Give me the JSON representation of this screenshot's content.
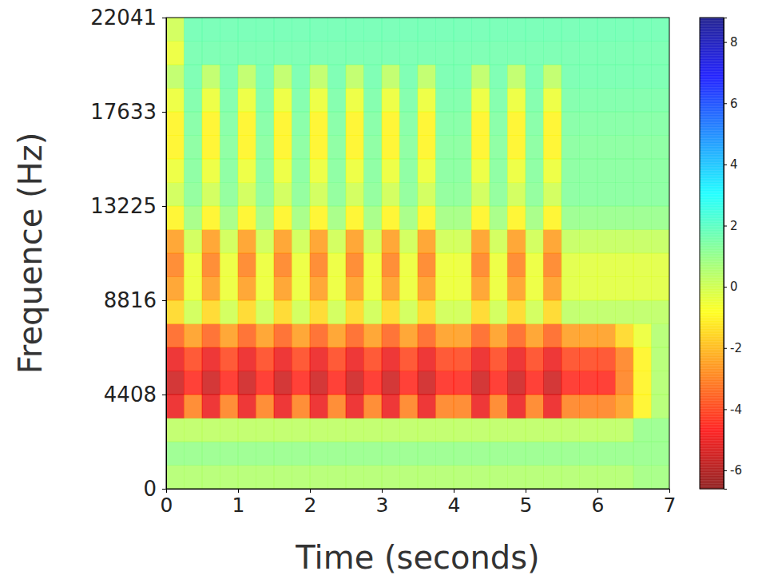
{
  "chart_data": {
    "type": "heatmap",
    "x_label": "Time (seconds)",
    "y_label": "Frequence (Hz)",
    "xlim": [
      0,
      7
    ],
    "ylim": [
      0,
      22041
    ],
    "xticks": [
      0,
      1,
      2,
      3,
      4,
      5,
      6,
      7
    ],
    "yticks": [
      0,
      4408,
      8816,
      13225,
      17633,
      22041
    ],
    "color": "jet_r",
    "colorbar": {
      "lim": [
        -6.6,
        8.8
      ],
      "ticks": [
        -6,
        -4,
        -2,
        0,
        2,
        4,
        6,
        8
      ]
    },
    "x": [
      0,
      0.25,
      0.5,
      0.75,
      1,
      1.25,
      1.5,
      1.75,
      2,
      2.25,
      2.5,
      2.75,
      3,
      3.25,
      3.5,
      3.75,
      4,
      4.25,
      4.5,
      4.75,
      5,
      5.25,
      5.5,
      5.75,
      6,
      6.25,
      6.5,
      6.75,
      7
    ],
    "y": [
      0,
      1102,
      2204,
      3306,
      4408,
      5510,
      6612,
      7715,
      8816,
      9918,
      11020,
      12123,
      13225,
      14327,
      15429,
      16531,
      17633,
      18735,
      19837,
      20939,
      22041
    ],
    "z": [
      [
        0.5,
        0.5,
        0.5,
        0.5,
        0.5,
        0.5,
        0.5,
        0.5,
        0.5,
        0.5,
        0.5,
        0.5,
        0.5,
        0.5,
        0.5,
        0.5,
        0.5,
        0.5,
        0.5,
        0.5,
        0.5,
        0.5,
        0.5,
        0.5,
        0.5,
        0.5,
        0.8,
        0.8
      ],
      [
        1,
        1,
        1,
        1,
        1,
        1,
        1,
        1,
        1,
        1,
        1,
        1,
        1,
        1,
        1,
        1,
        1,
        1,
        1,
        1,
        1,
        1,
        1,
        1,
        1,
        1,
        1,
        1
      ],
      [
        0.3,
        0.3,
        0.3,
        0.3,
        0.3,
        0.3,
        0.3,
        0.3,
        0.3,
        0.3,
        0.3,
        0.3,
        0.3,
        0.3,
        0.3,
        0.3,
        0.3,
        0.3,
        0.3,
        0.3,
        0.3,
        0.3,
        0.3,
        0.3,
        0.3,
        0.3,
        1,
        1
      ],
      [
        -5,
        -3,
        -5,
        -3,
        -5,
        -3,
        -5,
        -3,
        -5,
        -3,
        -5,
        -3,
        -5,
        -3,
        -5,
        -3,
        -3,
        -5,
        -3,
        -5,
        -3,
        -5,
        -3,
        -3,
        -3,
        -2.5,
        -1,
        0.5
      ],
      [
        -5.5,
        -4.5,
        -5.5,
        -4.5,
        -5.5,
        -4.5,
        -5.5,
        -4.5,
        -5.5,
        -4.5,
        -5.5,
        -4.5,
        -5.5,
        -4.5,
        -5.5,
        -4.5,
        -4.5,
        -5.5,
        -4.5,
        -5.5,
        -4.5,
        -5.5,
        -4.5,
        -4.5,
        -4.5,
        -3,
        -1,
        0.5
      ],
      [
        -5,
        -4,
        -5,
        -4,
        -5,
        -4,
        -5,
        -4,
        -5,
        -4,
        -5,
        -4,
        -5,
        -4,
        -5,
        -4,
        -4,
        -5,
        -4,
        -5,
        -4,
        -5,
        -4,
        -4,
        -4,
        -3,
        -1,
        0.5
      ],
      [
        -3.5,
        -2.5,
        -3.5,
        -2.5,
        -3.5,
        -2.5,
        -3.5,
        -2.5,
        -3.5,
        -2.5,
        -3.5,
        -2.5,
        -3.5,
        -2.5,
        -3.5,
        -2.5,
        -2.5,
        -3.5,
        -2.5,
        -3.5,
        -2.5,
        -3.5,
        -2.5,
        -2.5,
        -2.5,
        -1.5,
        -0.5,
        0.5
      ],
      [
        -1.5,
        0,
        -1.5,
        0,
        -1.5,
        0,
        -1.5,
        0,
        -1.5,
        0,
        -1.5,
        0,
        -1.5,
        0,
        -1.5,
        0,
        0,
        -1.5,
        0,
        -1.5,
        0,
        -1.5,
        0.3,
        0.3,
        0.3,
        0.3,
        0.3,
        0.3
      ],
      [
        -2.5,
        -0.5,
        -2.5,
        -0.5,
        -2.5,
        -0.5,
        -2.5,
        -0.5,
        -2.5,
        -0.5,
        -2.5,
        -0.5,
        -2.5,
        -0.5,
        -2.5,
        -0.5,
        -0.5,
        -2.5,
        -0.5,
        -2.5,
        -0.5,
        -2.5,
        -0.3,
        -0.3,
        -0.3,
        -0.3,
        -0.3,
        -0.3
      ],
      [
        -3,
        -0.5,
        -3,
        -0.5,
        -3,
        -0.5,
        -3,
        -0.5,
        -3,
        -0.5,
        -3,
        -0.5,
        -3,
        -0.5,
        -3,
        -0.5,
        -0.5,
        -3,
        -0.5,
        -3,
        -0.5,
        -3,
        -0.3,
        -0.3,
        -0.3,
        -0.3,
        -0.3,
        -0.3
      ],
      [
        -2.5,
        0,
        -2.5,
        0,
        -2.5,
        0,
        -2.5,
        0,
        -2.5,
        0,
        -2.5,
        0,
        -2.5,
        0,
        -2.5,
        0,
        0,
        -2.5,
        0,
        -2.5,
        0,
        -2.5,
        0.2,
        0.2,
        0.2,
        0.2,
        0.2,
        0.2
      ],
      [
        -1,
        0.8,
        -1,
        0.8,
        -1,
        0.8,
        -1,
        0.8,
        -1,
        0.8,
        -1,
        0.8,
        -1,
        0.8,
        -1,
        0.8,
        0.8,
        -1,
        0.8,
        -1,
        0.8,
        -1,
        1,
        1,
        1,
        1,
        1,
        1
      ],
      [
        0,
        1.2,
        0,
        1.2,
        0,
        1.2,
        0,
        1.2,
        0,
        1.2,
        0,
        1.2,
        0,
        1.2,
        0,
        1.2,
        1.2,
        0,
        1.2,
        0,
        1.2,
        0,
        1.3,
        1.3,
        1.3,
        1.3,
        1.3,
        1.3
      ],
      [
        -0.5,
        1.3,
        -0.5,
        1.3,
        -0.5,
        1.3,
        -0.5,
        1.3,
        -0.5,
        1.3,
        -0.5,
        1.3,
        -0.5,
        1.3,
        -0.5,
        1.3,
        1.3,
        -0.5,
        1.3,
        -0.5,
        1.3,
        -0.5,
        1.3,
        1.3,
        1.3,
        1.3,
        1.3,
        1.3
      ],
      [
        -1,
        1.3,
        -1,
        1.3,
        -1,
        1.3,
        -1,
        1.3,
        -1,
        1.3,
        -1,
        1.3,
        -1,
        1.3,
        -1,
        1.3,
        1.3,
        -1,
        1.3,
        -1,
        1.3,
        -1,
        1.3,
        1.3,
        1.3,
        1.3,
        1.3,
        1.3
      ],
      [
        -1,
        1.4,
        -1,
        1.4,
        -1,
        1.4,
        -1,
        1.4,
        -1,
        1.4,
        -1,
        1.4,
        -1,
        1.4,
        -1,
        1.4,
        1.4,
        -1,
        1.4,
        -1,
        1.4,
        -1,
        1.4,
        1.4,
        1.4,
        1.4,
        1.4,
        1.4
      ],
      [
        -0.5,
        1.5,
        -0.5,
        1.5,
        -0.5,
        1.5,
        -0.5,
        1.5,
        -0.5,
        1.5,
        -0.5,
        1.5,
        -0.5,
        1.5,
        -0.5,
        1.5,
        1.5,
        -0.5,
        1.5,
        -0.5,
        1.5,
        -0.5,
        1.5,
        1.5,
        1.5,
        1.5,
        1.5,
        1.5
      ],
      [
        0.3,
        1.6,
        0.3,
        1.6,
        0.3,
        1.6,
        0.3,
        1.6,
        0.3,
        1.6,
        0.3,
        1.6,
        0.3,
        1.6,
        0.3,
        1.6,
        1.6,
        0.3,
        1.6,
        0.3,
        1.6,
        0.3,
        1.6,
        1.6,
        1.6,
        1.6,
        1.6,
        1.6
      ],
      [
        -0.5,
        1.6,
        1.6,
        1.6,
        1.6,
        1.6,
        1.6,
        1.6,
        1.6,
        1.6,
        1.6,
        1.6,
        1.6,
        1.6,
        1.6,
        1.6,
        1.6,
        1.6,
        1.6,
        1.6,
        1.6,
        1.6,
        1.6,
        1.6,
        1.6,
        1.6,
        1.6,
        1.6
      ],
      [
        0,
        1.7,
        1.7,
        1.7,
        1.7,
        1.7,
        1.7,
        1.7,
        1.7,
        1.7,
        1.7,
        1.7,
        1.7,
        1.7,
        1.7,
        1.7,
        1.7,
        1.7,
        1.7,
        1.7,
        1.7,
        1.7,
        1.7,
        1.7,
        1.7,
        1.7,
        1.7,
        1.7
      ]
    ]
  }
}
